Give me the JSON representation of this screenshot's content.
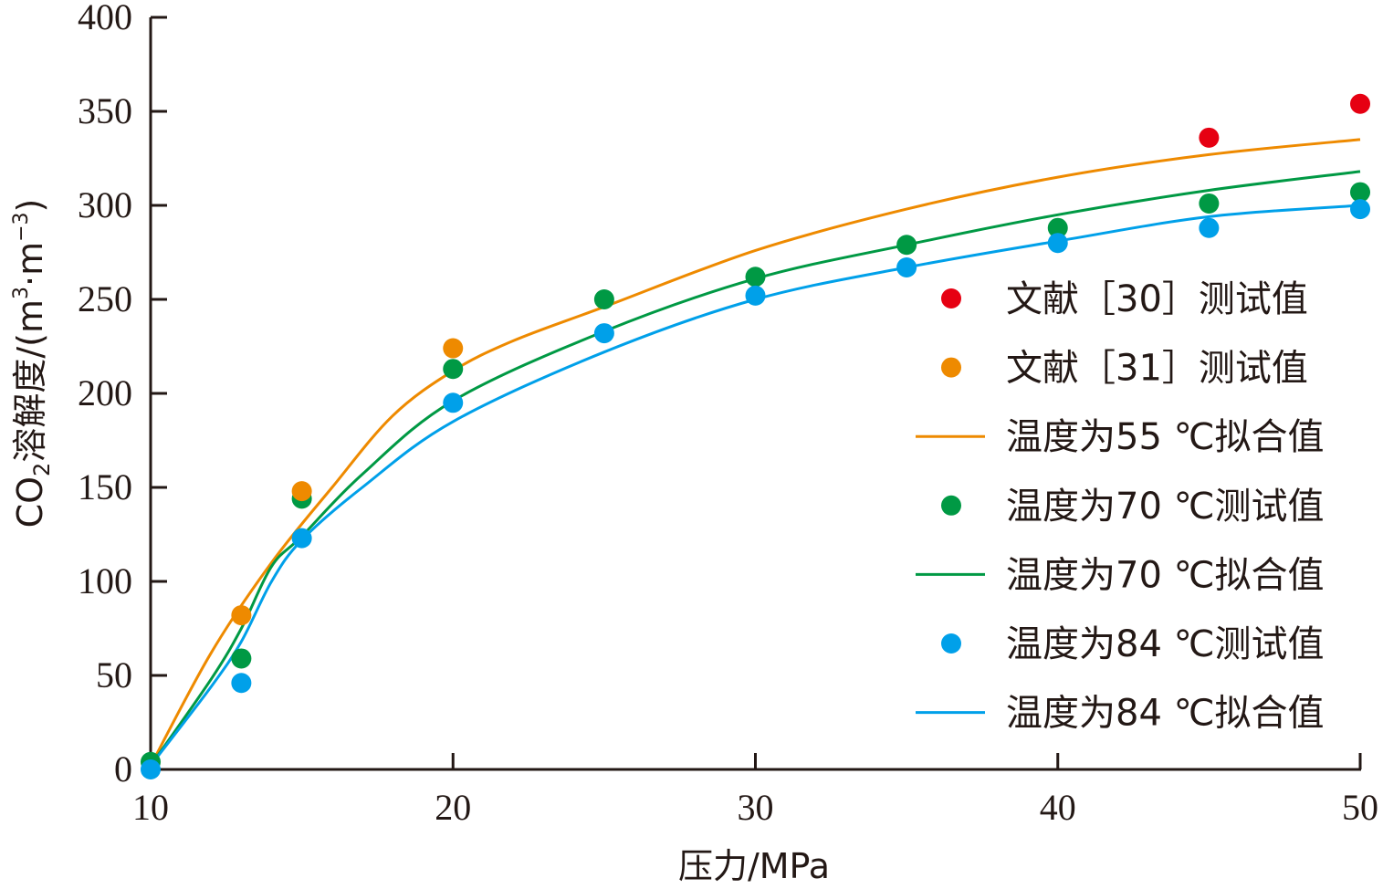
{
  "chart_data": {
    "type": "scatter",
    "title": "",
    "xlabel": "压力/MPa",
    "ylabel_parts": {
      "before_sub": "CO",
      "sub": "2",
      "mid": "溶解度/(m",
      "sup1": "3",
      "dot": "·",
      "m": "m",
      "sup2": "−3",
      "close": ")"
    },
    "xlim": [
      10,
      50
    ],
    "ylim": [
      0,
      400
    ],
    "xticks": [
      10,
      20,
      30,
      40,
      50
    ],
    "yticks": [
      0,
      50,
      100,
      150,
      200,
      250,
      300,
      350,
      400
    ],
    "grid": false,
    "legend_position": "right",
    "series": [
      {
        "name": "文献［30］测试值",
        "kind": "scatter",
        "color": "#e60012",
        "x": [
          45,
          50
        ],
        "y": [
          336,
          354
        ]
      },
      {
        "name": "文献［31］测试值",
        "kind": "scatter",
        "color": "#ee8a00",
        "x": [
          13,
          15,
          20
        ],
        "y": [
          82,
          148,
          224
        ]
      },
      {
        "name": "温度为55 ℃拟合值",
        "kind": "line",
        "color": "#ee8a00",
        "x": [
          10,
          12,
          14,
          16,
          18,
          20,
          22,
          25,
          30,
          35,
          40,
          45,
          50
        ],
        "y": [
          2,
          62,
          110,
          150,
          188,
          212,
          228,
          246,
          276,
          298,
          315,
          327,
          335
        ]
      },
      {
        "name": "温度为70 ℃测试值",
        "kind": "scatter",
        "color": "#009944",
        "x": [
          10,
          13,
          15,
          20,
          25,
          30,
          35,
          40,
          45,
          50
        ],
        "y": [
          4,
          59,
          144,
          213,
          250,
          262,
          279,
          288,
          301,
          307
        ]
      },
      {
        "name": "温度为70 ℃拟合值",
        "kind": "line",
        "color": "#009944",
        "x": [
          10,
          12,
          13,
          14,
          15,
          17,
          20,
          25,
          30,
          35,
          40,
          45,
          50
        ],
        "y": [
          2,
          48,
          75,
          108,
          124,
          157,
          196,
          233,
          261,
          279,
          295,
          308,
          318
        ]
      },
      {
        "name": "温度为84 ℃测试值",
        "kind": "scatter",
        "color": "#00a0e9",
        "x": [
          10,
          13,
          15,
          20,
          25,
          30,
          35,
          40,
          45,
          50
        ],
        "y": [
          0,
          46,
          123,
          195,
          232,
          252,
          267,
          280,
          288,
          298
        ]
      },
      {
        "name": "温度为84 ℃拟合值",
        "kind": "line",
        "color": "#00a0e9",
        "x": [
          10,
          12,
          13,
          14,
          15,
          17,
          20,
          25,
          30,
          35,
          40,
          45,
          50
        ],
        "y": [
          2,
          44,
          68,
          100,
          122,
          150,
          185,
          222,
          250,
          267,
          281,
          294,
          300
        ]
      }
    ]
  }
}
